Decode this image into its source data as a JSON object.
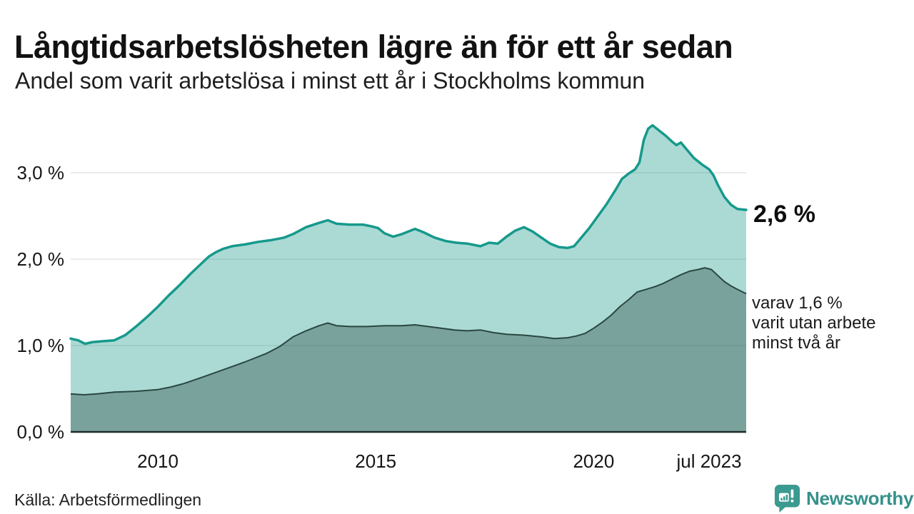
{
  "header": {
    "title": "Långtidsarbetslösheten lägre än för ett år sedan",
    "subtitle": "Andel som varit arbetslösa i minst ett år i Stockholms kommun"
  },
  "footer": {
    "source": "Källa: Arbetsförmedlingen",
    "brand": "Newsworthy"
  },
  "colors": {
    "line_primary": "#16998b",
    "fill_primary": "rgba(22,153,139,0.36)",
    "line_secondary": "#2a4741",
    "fill_secondary": "rgba(42,71,65,0.38)",
    "baseline": "#1b2b28",
    "gridline": "#e3e3e3",
    "brand_teal": "#35918a",
    "text_dark": "#121212"
  },
  "chart_data": {
    "type": "area",
    "title": "Långtidsarbetslösheten lägre än för ett år sedan",
    "subtitle": "Andel som varit arbetslösa i minst ett år i Stockholms kommun",
    "source": "Källa: Arbetsförmedlingen",
    "xlabel": "",
    "ylabel": "",
    "x_domain": [
      2008.0,
      2023.5
    ],
    "ylim": [
      0,
      3.7
    ],
    "grid": "horizontal",
    "legend_position": "none",
    "y_ticks": [
      {
        "value": 0,
        "label": "0,0 %"
      },
      {
        "value": 1,
        "label": "1,0 %"
      },
      {
        "value": 2,
        "label": "2,0 %"
      },
      {
        "value": 3,
        "label": "3,0 %"
      }
    ],
    "x_ticks": [
      {
        "value": 2010,
        "label": "2010"
      },
      {
        "value": 2015,
        "label": "2015"
      },
      {
        "value": 2020,
        "label": "2020"
      },
      {
        "value": 2023.5,
        "label": "jul 2023",
        "align": "right"
      }
    ],
    "annotations": {
      "primary_value": "2,6 %",
      "secondary_lines": [
        "varav 1,6 %",
        "varit utan arbete",
        "minst två år"
      ]
    },
    "series": [
      {
        "name": "Arbetslösa minst ett år",
        "end_value_label": "2,6 %",
        "x": [
          2008.0,
          2008.17,
          2008.33,
          2008.5,
          2008.75,
          2009.0,
          2009.25,
          2009.5,
          2009.75,
          2010.0,
          2010.25,
          2010.5,
          2010.75,
          2011.0,
          2011.17,
          2011.33,
          2011.5,
          2011.7,
          2012.0,
          2012.3,
          2012.6,
          2012.9,
          2013.1,
          2013.4,
          2013.7,
          2013.9,
          2014.1,
          2014.4,
          2014.7,
          2014.9,
          2015.05,
          2015.2,
          2015.4,
          2015.6,
          2015.9,
          2016.1,
          2016.35,
          2016.6,
          2016.85,
          2017.1,
          2017.4,
          2017.6,
          2017.8,
          2018.0,
          2018.2,
          2018.4,
          2018.6,
          2018.8,
          2019.0,
          2019.2,
          2019.4,
          2019.55,
          2019.7,
          2019.9,
          2020.1,
          2020.3,
          2020.5,
          2020.65,
          2020.8,
          2020.95,
          2021.05,
          2021.15,
          2021.25,
          2021.35,
          2021.5,
          2021.65,
          2021.8,
          2021.9,
          2022.0,
          2022.15,
          2022.3,
          2022.5,
          2022.65,
          2022.75,
          2022.85,
          2023.0,
          2023.15,
          2023.3,
          2023.5
        ],
        "values": [
          1.08,
          1.06,
          1.02,
          1.04,
          1.05,
          1.06,
          1.12,
          1.22,
          1.33,
          1.45,
          1.58,
          1.7,
          1.83,
          1.95,
          2.03,
          2.08,
          2.12,
          2.15,
          2.17,
          2.2,
          2.22,
          2.25,
          2.29,
          2.37,
          2.42,
          2.45,
          2.41,
          2.4,
          2.4,
          2.38,
          2.36,
          2.3,
          2.26,
          2.29,
          2.35,
          2.31,
          2.25,
          2.21,
          2.19,
          2.18,
          2.15,
          2.19,
          2.18,
          2.26,
          2.33,
          2.37,
          2.32,
          2.25,
          2.18,
          2.14,
          2.13,
          2.15,
          2.24,
          2.36,
          2.5,
          2.64,
          2.8,
          2.93,
          2.99,
          3.04,
          3.12,
          3.38,
          3.51,
          3.55,
          3.49,
          3.43,
          3.36,
          3.32,
          3.35,
          3.26,
          3.17,
          3.09,
          3.04,
          2.97,
          2.86,
          2.72,
          2.63,
          2.58,
          2.57
        ]
      },
      {
        "name": "Arbetslösa minst två år",
        "end_value_label": "1,6 %",
        "x": [
          2008.0,
          2008.3,
          2008.6,
          2009.0,
          2009.5,
          2010.0,
          2010.3,
          2010.6,
          2011.0,
          2011.5,
          2012.0,
          2012.5,
          2012.8,
          2013.1,
          2013.4,
          2013.7,
          2013.9,
          2014.1,
          2014.4,
          2014.8,
          2015.2,
          2015.6,
          2015.9,
          2016.2,
          2016.5,
          2016.8,
          2017.1,
          2017.4,
          2017.7,
          2018.0,
          2018.4,
          2018.8,
          2019.1,
          2019.4,
          2019.6,
          2019.8,
          2020.0,
          2020.2,
          2020.4,
          2020.6,
          2020.8,
          2021.0,
          2021.2,
          2021.4,
          2021.6,
          2021.8,
          2022.0,
          2022.2,
          2022.4,
          2022.55,
          2022.7,
          2022.85,
          2023.0,
          2023.15,
          2023.3,
          2023.5
        ],
        "values": [
          0.44,
          0.43,
          0.44,
          0.46,
          0.47,
          0.49,
          0.52,
          0.56,
          0.63,
          0.72,
          0.81,
          0.91,
          0.99,
          1.1,
          1.17,
          1.23,
          1.26,
          1.23,
          1.22,
          1.22,
          1.23,
          1.23,
          1.24,
          1.22,
          1.2,
          1.18,
          1.17,
          1.18,
          1.15,
          1.13,
          1.12,
          1.1,
          1.08,
          1.09,
          1.11,
          1.14,
          1.2,
          1.27,
          1.35,
          1.45,
          1.53,
          1.62,
          1.65,
          1.68,
          1.72,
          1.77,
          1.82,
          1.86,
          1.88,
          1.9,
          1.88,
          1.81,
          1.74,
          1.69,
          1.65,
          1.6
        ]
      }
    ]
  }
}
